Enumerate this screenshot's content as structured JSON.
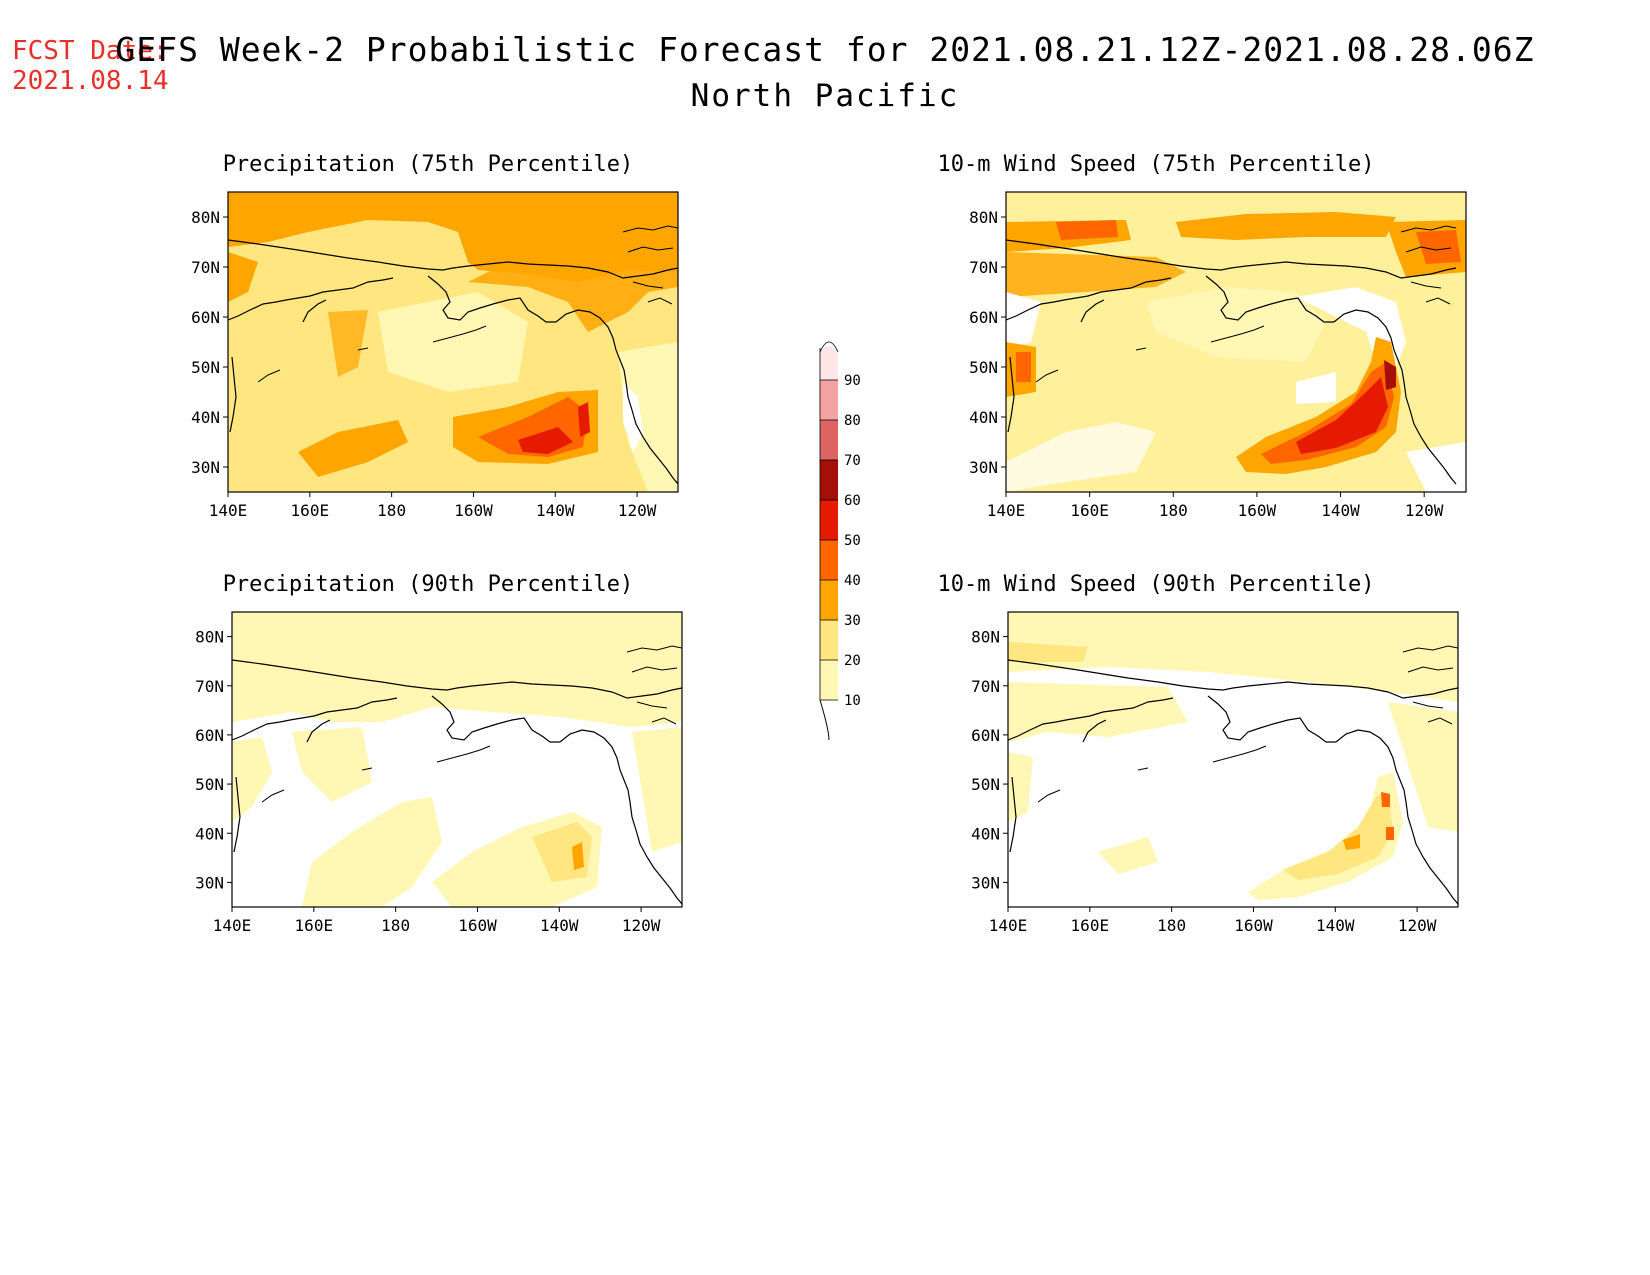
{
  "header": {
    "fcst_label": "FCST Date:",
    "fcst_date": "2021.08.14",
    "title": "GEFS Week-2 Probabilistic Forecast for 2021.08.21.12Z-2021.08.28.06Z",
    "subtitle": "North Pacific"
  },
  "colorbar": {
    "labels": [
      "10",
      "20",
      "30",
      "40",
      "50",
      "60",
      "70",
      "80",
      "90"
    ],
    "colors": [
      "#fff7b3",
      "#ffe680",
      "#ffa500",
      "#ff6600",
      "#e61a00",
      "#a50f08",
      "#de6363",
      "#f4a3a3",
      "#ffe6e6"
    ]
  },
  "map_axes": {
    "lon_labels": [
      "140E",
      "160E",
      "180",
      "160W",
      "140W",
      "120W"
    ],
    "lat_labels": [
      "80N",
      "70N",
      "60N",
      "50N",
      "40N",
      "30N"
    ]
  },
  "panels": [
    {
      "title": "Precipitation (75th Percentile)",
      "variable": "precipitation",
      "percentile": 75
    },
    {
      "title": "10-m Wind Speed (75th Percentile)",
      "variable": "wind",
      "percentile": 75
    },
    {
      "title": "Precipitation (90th Percentile)",
      "variable": "precipitation",
      "percentile": 90
    },
    {
      "title": "10-m Wind Speed (90th Percentile)",
      "variable": "wind",
      "percentile": 90
    }
  ]
}
